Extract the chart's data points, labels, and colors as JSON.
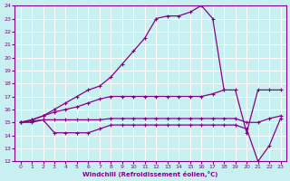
{
  "xlabel": "Windchill (Refroidissement éolien,°C)",
  "ylabel": "",
  "xlim": [
    -0.5,
    23.5
  ],
  "ylim": [
    12,
    24
  ],
  "yticks": [
    12,
    13,
    14,
    15,
    16,
    17,
    18,
    19,
    20,
    21,
    22,
    23,
    24
  ],
  "xticks": [
    0,
    1,
    2,
    3,
    4,
    5,
    6,
    7,
    8,
    9,
    10,
    11,
    12,
    13,
    14,
    15,
    16,
    17,
    18,
    19,
    20,
    21,
    22,
    23
  ],
  "bg_color": "#c8f0f0",
  "grid_color": "#aadddd",
  "line_color": "#880088",
  "lines": [
    {
      "x": [
        0,
        1,
        2,
        3,
        4,
        5,
        6,
        7,
        8,
        9,
        10,
        11,
        12,
        13,
        14,
        15,
        16,
        17,
        18
      ],
      "y": [
        15.0,
        15.2,
        15.5,
        16.0,
        16.5,
        17.0,
        17.5,
        17.8,
        18.5,
        19.5,
        20.5,
        21.5,
        23.0,
        23.2,
        23.2,
        23.5,
        24.0,
        23.0,
        17.5
      ],
      "marker": "+"
    },
    {
      "x": [
        0,
        1,
        2,
        3,
        4,
        5,
        6,
        7,
        8,
        9,
        10,
        11,
        12,
        13,
        14,
        15,
        16,
        17,
        18,
        19,
        20,
        21,
        22,
        23
      ],
      "y": [
        15.0,
        15.2,
        15.5,
        15.8,
        16.0,
        16.2,
        16.5,
        16.8,
        17.0,
        17.0,
        17.0,
        17.0,
        17.0,
        17.0,
        17.0,
        17.0,
        17.0,
        17.2,
        17.5,
        17.5,
        14.2,
        17.5,
        17.5,
        17.5
      ],
      "marker": "+"
    },
    {
      "x": [
        0,
        1,
        2,
        3,
        4,
        5,
        6,
        7,
        8,
        9,
        10,
        11,
        12,
        13,
        14,
        15,
        16,
        17,
        18,
        19,
        20,
        21,
        22,
        23
      ],
      "y": [
        15.0,
        15.1,
        15.2,
        15.2,
        15.2,
        15.2,
        15.2,
        15.2,
        15.3,
        15.3,
        15.3,
        15.3,
        15.3,
        15.3,
        15.3,
        15.3,
        15.3,
        15.3,
        15.3,
        15.3,
        15.0,
        15.0,
        15.3,
        15.5
      ],
      "marker": "+"
    },
    {
      "x": [
        0,
        1,
        2,
        3,
        4,
        5,
        6,
        7,
        8,
        9,
        10,
        11,
        12,
        13,
        14,
        15,
        16,
        17,
        18,
        19,
        20,
        21,
        22,
        23
      ],
      "y": [
        15.0,
        15.0,
        15.2,
        14.2,
        14.2,
        14.2,
        14.2,
        14.5,
        14.8,
        14.8,
        14.8,
        14.8,
        14.8,
        14.8,
        14.8,
        14.8,
        14.8,
        14.8,
        14.8,
        14.8,
        14.5,
        12.0,
        13.2,
        15.3
      ],
      "marker": "+"
    }
  ]
}
